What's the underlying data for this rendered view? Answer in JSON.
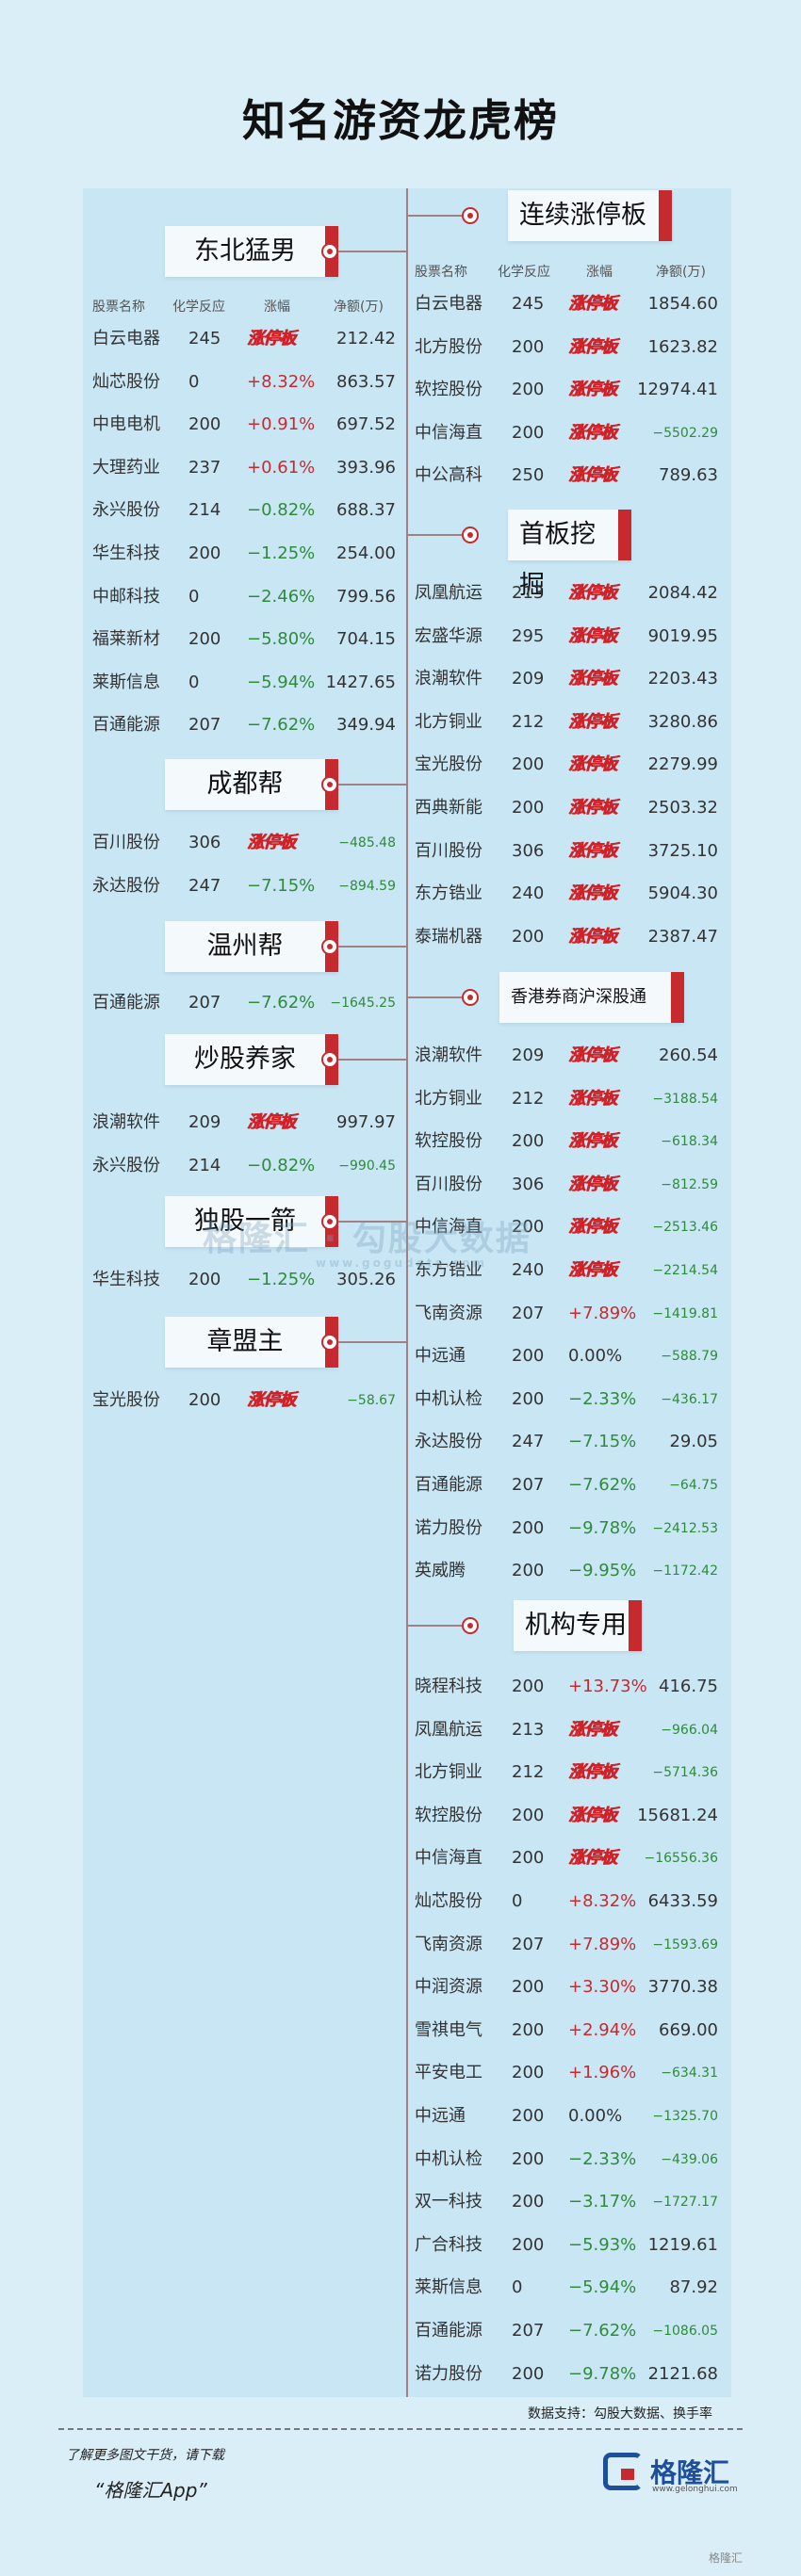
{
  "title": "知名游资龙虎榜",
  "limit_up_label": "涨停板",
  "columns": [
    "股票名称",
    "化学反应",
    "涨幅",
    "净额(万)"
  ],
  "left_sections": [
    {
      "name": "东北猛男",
      "show_header": true,
      "rows": [
        {
          "name": "白云电器",
          "code": "245",
          "chg": "limit",
          "net": "212.42"
        },
        {
          "name": "灿芯股份",
          "code": "0",
          "chg": "+8.32%",
          "net": "863.57"
        },
        {
          "name": "中电电机",
          "code": "200",
          "chg": "+0.91%",
          "net": "697.52"
        },
        {
          "name": "大理药业",
          "code": "237",
          "chg": "+0.61%",
          "net": "393.96"
        },
        {
          "name": "永兴股份",
          "code": "214",
          "chg": "−0.82%",
          "net": "688.37"
        },
        {
          "name": "华生科技",
          "code": "200",
          "chg": "−1.25%",
          "net": "254.00"
        },
        {
          "name": "中邮科技",
          "code": "0",
          "chg": "−2.46%",
          "net": "799.56"
        },
        {
          "name": "福莱新材",
          "code": "200",
          "chg": "−5.80%",
          "net": "704.15"
        },
        {
          "name": "莱斯信息",
          "code": "0",
          "chg": "−5.94%",
          "net": "1427.65"
        },
        {
          "name": "百通能源",
          "code": "207",
          "chg": "−7.62%",
          "net": "349.94"
        }
      ]
    },
    {
      "name": "成都帮",
      "rows": [
        {
          "name": "百川股份",
          "code": "306",
          "chg": "limit",
          "net": "−485.48"
        },
        {
          "name": "永达股份",
          "code": "247",
          "chg": "−7.15%",
          "net": "−894.59"
        }
      ]
    },
    {
      "name": "温州帮",
      "rows": [
        {
          "name": "百通能源",
          "code": "207",
          "chg": "−7.62%",
          "net": "−1645.25"
        }
      ]
    },
    {
      "name": "炒股养家",
      "rows": [
        {
          "name": "浪潮软件",
          "code": "209",
          "chg": "limit",
          "net": "997.97"
        },
        {
          "name": "永兴股份",
          "code": "214",
          "chg": "−0.82%",
          "net": "−990.45"
        }
      ]
    },
    {
      "name": "独股一箭",
      "rows": [
        {
          "name": "华生科技",
          "code": "200",
          "chg": "−1.25%",
          "net": "305.26"
        }
      ]
    },
    {
      "name": "章盟主",
      "rows": [
        {
          "name": "宝光股份",
          "code": "200",
          "chg": "limit",
          "net": "−58.67"
        }
      ]
    }
  ],
  "right_sections": [
    {
      "name": "连续涨停板",
      "show_header": true,
      "rows": [
        {
          "name": "白云电器",
          "code": "245",
          "chg": "limit",
          "net": "1854.60"
        },
        {
          "name": "北方股份",
          "code": "200",
          "chg": "limit",
          "net": "1623.82"
        },
        {
          "name": "软控股份",
          "code": "200",
          "chg": "limit",
          "net": "12974.41"
        },
        {
          "name": "中信海直",
          "code": "200",
          "chg": "limit",
          "net": "−5502.29"
        },
        {
          "name": "中公高科",
          "code": "250",
          "chg": "limit",
          "net": "789.63"
        }
      ]
    },
    {
      "name": "首板挖掘",
      "rows": [
        {
          "name": "凤凰航运",
          "code": "213",
          "chg": "limit",
          "net": "2084.42"
        },
        {
          "name": "宏盛华源",
          "code": "295",
          "chg": "limit",
          "net": "9019.95"
        },
        {
          "name": "浪潮软件",
          "code": "209",
          "chg": "limit",
          "net": "2203.43"
        },
        {
          "name": "北方铜业",
          "code": "212",
          "chg": "limit",
          "net": "3280.86"
        },
        {
          "name": "宝光股份",
          "code": "200",
          "chg": "limit",
          "net": "2279.99"
        },
        {
          "name": "西典新能",
          "code": "200",
          "chg": "limit",
          "net": "2503.32"
        },
        {
          "name": "百川股份",
          "code": "306",
          "chg": "limit",
          "net": "3725.10"
        },
        {
          "name": "东方锆业",
          "code": "240",
          "chg": "limit",
          "net": "5904.30"
        },
        {
          "name": "泰瑞机器",
          "code": "200",
          "chg": "limit",
          "net": "2387.47"
        }
      ]
    },
    {
      "name": "香港券商沪深股通",
      "rows": [
        {
          "name": "浪潮软件",
          "code": "209",
          "chg": "limit",
          "net": "260.54"
        },
        {
          "name": "北方铜业",
          "code": "212",
          "chg": "limit",
          "net": "−3188.54"
        },
        {
          "name": "软控股份",
          "code": "200",
          "chg": "limit",
          "net": "−618.34"
        },
        {
          "name": "百川股份",
          "code": "306",
          "chg": "limit",
          "net": "−812.59"
        },
        {
          "name": "中信海直",
          "code": "200",
          "chg": "limit",
          "net": "−2513.46"
        },
        {
          "name": "东方锆业",
          "code": "240",
          "chg": "limit",
          "net": "−2214.54"
        },
        {
          "name": "飞南资源",
          "code": "207",
          "chg": "+7.89%",
          "net": "−1419.81"
        },
        {
          "name": "中远通",
          "code": "200",
          "chg": "0.00%",
          "net": "−588.79"
        },
        {
          "name": "中机认检",
          "code": "200",
          "chg": "−2.33%",
          "net": "−436.17"
        },
        {
          "name": "永达股份",
          "code": "247",
          "chg": "−7.15%",
          "net": "29.05"
        },
        {
          "name": "百通能源",
          "code": "207",
          "chg": "−7.62%",
          "net": "−64.75"
        },
        {
          "name": "诺力股份",
          "code": "200",
          "chg": "−9.78%",
          "net": "−2412.53"
        },
        {
          "name": "英威腾",
          "code": "200",
          "chg": "−9.95%",
          "net": "−1172.42"
        }
      ]
    },
    {
      "name": "机构专用",
      "rows": [
        {
          "name": "晓程科技",
          "code": "200",
          "chg": "+13.73%",
          "net": "416.75"
        },
        {
          "name": "凤凰航运",
          "code": "213",
          "chg": "limit",
          "net": "−966.04"
        },
        {
          "name": "北方铜业",
          "code": "212",
          "chg": "limit",
          "net": "−5714.36"
        },
        {
          "name": "软控股份",
          "code": "200",
          "chg": "limit",
          "net": "15681.24"
        },
        {
          "name": "中信海直",
          "code": "200",
          "chg": "limit",
          "net": "−16556.36"
        },
        {
          "name": "灿芯股份",
          "code": "0",
          "chg": "+8.32%",
          "net": "6433.59"
        },
        {
          "name": "飞南资源",
          "code": "207",
          "chg": "+7.89%",
          "net": "−1593.69"
        },
        {
          "name": "中润资源",
          "code": "200",
          "chg": "+3.30%",
          "net": "3770.38"
        },
        {
          "name": "雪祺电气",
          "code": "200",
          "chg": "+2.94%",
          "net": "669.00"
        },
        {
          "name": "平安电工",
          "code": "200",
          "chg": "+1.96%",
          "net": "−634.31"
        },
        {
          "name": "中远通",
          "code": "200",
          "chg": "0.00%",
          "net": "−1325.70"
        },
        {
          "name": "中机认检",
          "code": "200",
          "chg": "−2.33%",
          "net": "−439.06"
        },
        {
          "name": "双一科技",
          "code": "200",
          "chg": "−3.17%",
          "net": "−1727.17"
        },
        {
          "name": "广合科技",
          "code": "200",
          "chg": "−5.93%",
          "net": "1219.61"
        },
        {
          "name": "莱斯信息",
          "code": "0",
          "chg": "−5.94%",
          "net": "87.92"
        },
        {
          "name": "百通能源",
          "code": "207",
          "chg": "−7.62%",
          "net": "−1086.05"
        },
        {
          "name": "诺力股份",
          "code": "200",
          "chg": "−9.78%",
          "net": "2121.68"
        }
      ]
    }
  ],
  "watermark": {
    "text": "格隆汇 · 勾股大数据",
    "url": "www.gogudata.com"
  },
  "source": "数据支持：勾股大数据、换手率",
  "footer": {
    "line1": "了解更多图文干货，请下载",
    "line2": "“格隆汇App”",
    "logo_text": "格隆汇",
    "logo_url": "www.gelonghui.com",
    "corner": "格隆汇"
  },
  "colors": {
    "background": "#daeef8",
    "panel": "#c9e6f4",
    "accent": "#c62a2f",
    "up": "#c62a2f",
    "down": "#2e8b3a"
  }
}
